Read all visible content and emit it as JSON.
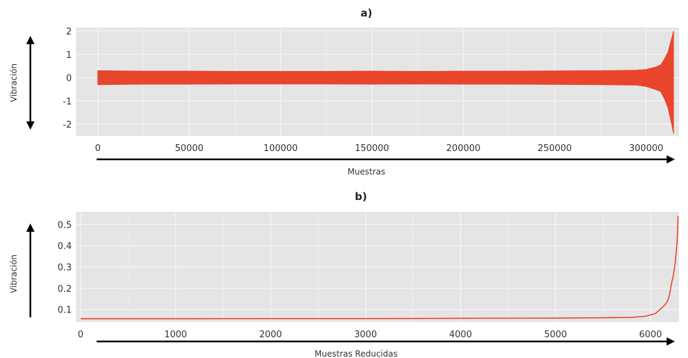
{
  "colors": {
    "series": "#e8452c",
    "panel_bg": "#e5e5e5",
    "grid": "#f5f5f5",
    "axis_arrow": "#000000"
  },
  "chart_data": [
    {
      "type": "line",
      "title": "a)",
      "xlabel": "Muestras",
      "ylabel": "Vibración",
      "xlim": [
        -12000,
        318000
      ],
      "ylim": [
        -2.5,
        2.15
      ],
      "x_ticks": [
        0,
        50000,
        100000,
        150000,
        200000,
        250000,
        300000
      ],
      "x_tick_labels": [
        "0",
        "50000",
        "100000",
        "150000",
        "200000",
        "250000",
        "300000"
      ],
      "y_ticks": [
        2,
        1,
        0,
        -1,
        -2
      ],
      "y_tick_labels": [
        "2",
        "1",
        "0",
        "-1",
        "-2"
      ],
      "grid": true,
      "series": [
        {
          "x": [
            0,
            25000,
            50000,
            75000,
            100000,
            125000,
            150000,
            175000,
            200000,
            225000,
            250000,
            275000,
            295000,
            300000,
            305000,
            308000,
            310000,
            312000,
            314000,
            315000
          ],
          "envelope_high": [
            0.3,
            0.28,
            0.28,
            0.27,
            0.27,
            0.27,
            0.28,
            0.27,
            0.28,
            0.28,
            0.29,
            0.3,
            0.32,
            0.35,
            0.45,
            0.55,
            0.8,
            1.1,
            1.7,
            2.0
          ],
          "envelope_low": [
            -0.3,
            -0.28,
            -0.28,
            -0.27,
            -0.27,
            -0.27,
            -0.28,
            -0.27,
            -0.28,
            -0.28,
            -0.29,
            -0.3,
            -0.32,
            -0.38,
            -0.5,
            -0.6,
            -0.9,
            -1.3,
            -2.0,
            -2.4
          ]
        }
      ]
    },
    {
      "type": "line",
      "title": "b)",
      "xlabel": "Muestras Reducidas",
      "ylabel": "Vibración",
      "xlim": [
        -50,
        6300
      ],
      "ylim": [
        0.04,
        0.56
      ],
      "x_ticks": [
        0,
        1000,
        2000,
        3000,
        4000,
        5000,
        6000
      ],
      "x_tick_labels": [
        "0",
        "1000",
        "2000",
        "3000",
        "4000",
        "5000",
        "6000"
      ],
      "y_ticks": [
        0.5,
        0.4,
        0.3,
        0.2,
        0.1
      ],
      "y_tick_labels": [
        "0.5",
        "0.4",
        "0.3",
        "0.2",
        "0.1"
      ],
      "grid": true,
      "series": [
        {
          "x": [
            0,
            1000,
            2000,
            3000,
            4000,
            5000,
            5800,
            5950,
            6050,
            6100,
            6150,
            6180,
            6200,
            6220,
            6240,
            6260,
            6280,
            6290
          ],
          "y": [
            0.056,
            0.056,
            0.057,
            0.057,
            0.058,
            0.059,
            0.062,
            0.068,
            0.08,
            0.1,
            0.12,
            0.14,
            0.17,
            0.22,
            0.26,
            0.32,
            0.42,
            0.54
          ]
        }
      ]
    }
  ]
}
